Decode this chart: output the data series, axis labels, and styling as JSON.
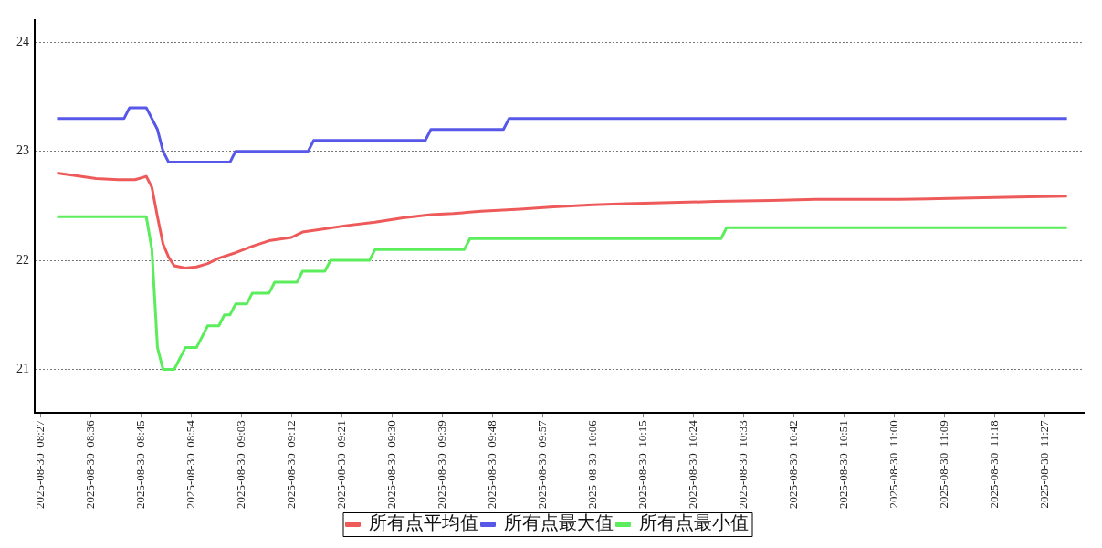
{
  "chart_data": {
    "type": "line",
    "xlim": [
      "2025-08-30T08:26",
      "2025-08-30T11:34"
    ],
    "xticks": [
      {
        "value": "2025-08-30T08:27",
        "label": "2025-08-30  08:27"
      },
      {
        "value": "2025-08-30T08:36",
        "label": "2025-08-30  08:36"
      },
      {
        "value": "2025-08-30T08:45",
        "label": "2025-08-30  08:45"
      },
      {
        "value": "2025-08-30T08:54",
        "label": "2025-08-30  08:54"
      },
      {
        "value": "2025-08-30T09:03",
        "label": "2025-08-30  09:03"
      },
      {
        "value": "2025-08-30T09:12",
        "label": "2025-08-30  09:12"
      },
      {
        "value": "2025-08-30T09:21",
        "label": "2025-08-30  09:21"
      },
      {
        "value": "2025-08-30T09:30",
        "label": "2025-08-30  09:30"
      },
      {
        "value": "2025-08-30T09:39",
        "label": "2025-08-30  09:39"
      },
      {
        "value": "2025-08-30T09:48",
        "label": "2025-08-30  09:48"
      },
      {
        "value": "2025-08-30T09:57",
        "label": "2025-08-30  09:57"
      },
      {
        "value": "2025-08-30T10:06",
        "label": "2025-08-30  10:06"
      },
      {
        "value": "2025-08-30T10:15",
        "label": "2025-08-30  10:15"
      },
      {
        "value": "2025-08-30T10:24",
        "label": "2025-08-30  10:24"
      },
      {
        "value": "2025-08-30T10:33",
        "label": "2025-08-30  10:33"
      },
      {
        "value": "2025-08-30T10:42",
        "label": "2025-08-30  10:42"
      },
      {
        "value": "2025-08-30T10:51",
        "label": "2025-08-30  10:51"
      },
      {
        "value": "2025-08-30T11:00",
        "label": "2025-08-30  11:00"
      },
      {
        "value": "2025-08-30T11:09",
        "label": "2025-08-30  11:09"
      },
      {
        "value": "2025-08-30T11:18",
        "label": "2025-08-30  11:18"
      },
      {
        "value": "2025-08-30T11:27",
        "label": "2025-08-30  11:27"
      }
    ],
    "ylim": [
      20.6,
      24.2
    ],
    "yticks": [
      21,
      22,
      23,
      24
    ],
    "grid": "y",
    "legend": "bottom",
    "marker": "none",
    "line_style": "solid",
    "series": [
      {
        "name": "所有点平均值",
        "color": "#ee5a5a",
        "x": [
          "2025-08-30T08:30",
          "2025-08-30T08:33",
          "2025-08-30T08:37",
          "2025-08-30T08:41",
          "2025-08-30T08:44",
          "2025-08-30T08:46",
          "2025-08-30T08:47",
          "2025-08-30T08:48",
          "2025-08-30T08:49",
          "2025-08-30T08:50",
          "2025-08-30T08:51",
          "2025-08-30T08:53",
          "2025-08-30T08:55",
          "2025-08-30T08:57",
          "2025-08-30T08:59",
          "2025-08-30T09:02",
          "2025-08-30T09:05",
          "2025-08-30T09:08",
          "2025-08-30T09:12",
          "2025-08-30T09:14",
          "2025-08-30T09:18",
          "2025-08-30T09:22",
          "2025-08-30T09:27",
          "2025-08-30T09:32",
          "2025-08-30T09:37",
          "2025-08-30T09:41",
          "2025-08-30T09:46",
          "2025-08-30T09:53",
          "2025-08-30T09:59",
          "2025-08-30T10:06",
          "2025-08-30T10:12",
          "2025-08-30T10:20",
          "2025-08-30T10:28",
          "2025-08-30T10:38",
          "2025-08-30T10:46",
          "2025-08-30T11:01",
          "2025-08-30T11:12",
          "2025-08-30T11:22",
          "2025-08-30T11:31"
        ],
        "values": [
          22.8,
          22.78,
          22.75,
          22.74,
          22.74,
          22.77,
          22.67,
          22.4,
          22.15,
          22.03,
          21.95,
          21.93,
          21.94,
          21.97,
          22.02,
          22.07,
          22.13,
          22.18,
          22.21,
          22.26,
          22.29,
          22.32,
          22.35,
          22.39,
          22.42,
          22.43,
          22.45,
          22.47,
          22.49,
          22.51,
          22.52,
          22.53,
          22.54,
          22.55,
          22.56,
          22.56,
          22.57,
          22.58,
          22.59
        ]
      },
      {
        "name": "所有点最大值",
        "color": "#5858e8",
        "x": [
          "2025-08-30T08:30",
          "2025-08-30T08:42",
          "2025-08-30T08:43",
          "2025-08-30T08:46",
          "2025-08-30T08:48",
          "2025-08-30T08:49",
          "2025-08-30T08:50",
          "2025-08-30T09:01",
          "2025-08-30T09:02",
          "2025-08-30T09:15",
          "2025-08-30T09:16",
          "2025-08-30T09:36",
          "2025-08-30T09:37",
          "2025-08-30T09:50",
          "2025-08-30T09:51",
          "2025-08-30T11:31"
        ],
        "values": [
          23.3,
          23.3,
          23.4,
          23.4,
          23.2,
          23.0,
          22.9,
          22.9,
          23.0,
          23.0,
          23.1,
          23.1,
          23.2,
          23.2,
          23.3,
          23.3
        ]
      },
      {
        "name": "所有点最小值",
        "color": "#5ced5c",
        "x": [
          "2025-08-30T08:30",
          "2025-08-30T08:46",
          "2025-08-30T08:47",
          "2025-08-30T08:48",
          "2025-08-30T08:49",
          "2025-08-30T08:51",
          "2025-08-30T08:53",
          "2025-08-30T08:55",
          "2025-08-30T08:57",
          "2025-08-30T08:59",
          "2025-08-30T09:00",
          "2025-08-30T09:01",
          "2025-08-30T09:02",
          "2025-08-30T09:04",
          "2025-08-30T09:05",
          "2025-08-30T09:08",
          "2025-08-30T09:09",
          "2025-08-30T09:13",
          "2025-08-30T09:14",
          "2025-08-30T09:18",
          "2025-08-30T09:19",
          "2025-08-30T09:26",
          "2025-08-30T09:27",
          "2025-08-30T09:43",
          "2025-08-30T09:44",
          "2025-08-30T10:29",
          "2025-08-30T10:30",
          "2025-08-30T11:31"
        ],
        "values": [
          22.4,
          22.4,
          22.1,
          21.2,
          21.0,
          21.0,
          21.2,
          21.2,
          21.4,
          21.4,
          21.5,
          21.5,
          21.6,
          21.6,
          21.7,
          21.7,
          21.8,
          21.8,
          21.9,
          21.9,
          22.0,
          22.0,
          22.1,
          22.1,
          22.2,
          22.2,
          22.3,
          22.3
        ]
      }
    ]
  }
}
